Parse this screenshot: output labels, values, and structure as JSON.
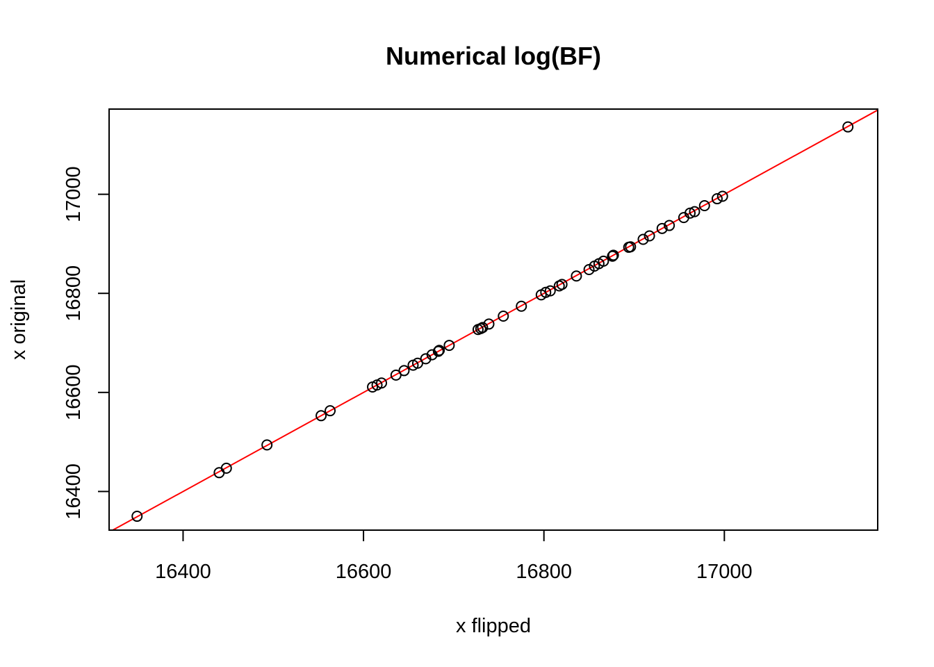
{
  "chart_data": {
    "type": "scatter",
    "title": "Numerical log(BF)",
    "xlabel": "x flipped",
    "ylabel": "x original",
    "xlim": [
      16318,
      17170
    ],
    "ylim": [
      16322,
      17172
    ],
    "x_ticks": [
      16400,
      16600,
      16800,
      17000
    ],
    "y_ticks": [
      16400,
      16600,
      16800,
      17000
    ],
    "x_tick_labels": [
      "16400",
      "16600",
      "16800",
      "17000"
    ],
    "y_tick_labels": [
      "16400",
      "16600",
      "16800",
      "17000"
    ],
    "grid": false,
    "legend": "none",
    "points": [
      [
        16349,
        16350
      ],
      [
        16440,
        16438
      ],
      [
        16448,
        16447
      ],
      [
        16493,
        16494
      ],
      [
        16553,
        16553
      ],
      [
        16563,
        16563
      ],
      [
        16610,
        16611
      ],
      [
        16615,
        16615
      ],
      [
        16620,
        16619
      ],
      [
        16636,
        16635
      ],
      [
        16645,
        16644
      ],
      [
        16655,
        16655
      ],
      [
        16660,
        16659
      ],
      [
        16669,
        16668
      ],
      [
        16676,
        16676
      ],
      [
        16683,
        16683
      ],
      [
        16684,
        16685
      ],
      [
        16695,
        16695
      ],
      [
        16727,
        16727
      ],
      [
        16730,
        16729
      ],
      [
        16732,
        16731
      ],
      [
        16739,
        16738
      ],
      [
        16755,
        16754
      ],
      [
        16775,
        16774
      ],
      [
        16797,
        16797
      ],
      [
        16802,
        16802
      ],
      [
        16807,
        16805
      ],
      [
        16817,
        16815
      ],
      [
        16820,
        16818
      ],
      [
        16836,
        16835
      ],
      [
        16850,
        16848
      ],
      [
        16856,
        16855
      ],
      [
        16861,
        16860
      ],
      [
        16866,
        16865
      ],
      [
        16876,
        16875
      ],
      [
        16877,
        16877
      ],
      [
        16894,
        16893
      ],
      [
        16896,
        16894
      ],
      [
        16910,
        16909
      ],
      [
        16917,
        16916
      ],
      [
        16931,
        16931
      ],
      [
        16939,
        16937
      ],
      [
        16955,
        16953
      ],
      [
        16962,
        16962
      ],
      [
        16967,
        16965
      ],
      [
        16978,
        16977
      ],
      [
        16992,
        16991
      ],
      [
        16998,
        16996
      ],
      [
        17137,
        17136
      ]
    ],
    "reference_line": {
      "type": "identity",
      "slope": 1,
      "intercept": 0,
      "color": "#ff0000"
    },
    "marker": {
      "shape": "open-circle",
      "color": "#000000"
    }
  }
}
